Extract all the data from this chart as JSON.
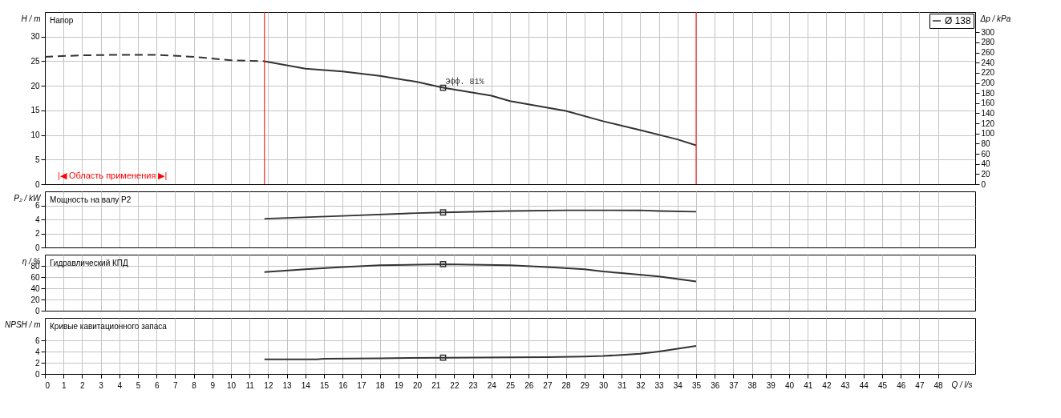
{
  "chart_data": [
    {
      "type": "line",
      "ylabel": "H / m",
      "y2label": "Δp / kPa",
      "xlim": [
        0,
        50
      ],
      "xticks": [
        0,
        1,
        2,
        3,
        4,
        5,
        6,
        7,
        8,
        9,
        10,
        11,
        12,
        13,
        14,
        15,
        16,
        17,
        18,
        19,
        20,
        21,
        22,
        23,
        24,
        25,
        26,
        27,
        28,
        29,
        30,
        31,
        32,
        33,
        34,
        35,
        36,
        37,
        38,
        39,
        40,
        41,
        42,
        43,
        44,
        45,
        46,
        47,
        48
      ],
      "ylim": [
        0,
        35
      ],
      "yticks": [
        0,
        5,
        10,
        15,
        20,
        25,
        30
      ],
      "y2lim": [
        0,
        340
      ],
      "y2ticks": [
        0,
        20,
        40,
        60,
        80,
        100,
        120,
        140,
        160,
        180,
        200,
        220,
        240,
        260,
        280,
        300
      ],
      "grid": true,
      "legend": "top right",
      "tick_labels": "y",
      "series": [
        {
          "color": "#333333",
          "line_style": "dashed",
          "x": [
            0,
            2,
            4,
            6,
            8,
            10,
            11.8
          ],
          "values": [
            25.9,
            26.2,
            26.3,
            26.3,
            25.9,
            25.2,
            25.0
          ]
        },
        {
          "name": "Ø 138",
          "color": "#333333",
          "line_style": "solid",
          "x": [
            11.8,
            14,
            16,
            18,
            20,
            21.4,
            24,
            25,
            28,
            30,
            32,
            34,
            35
          ],
          "values": [
            25.0,
            23.5,
            22.9,
            22.0,
            20.8,
            19.6,
            18.0,
            16.9,
            14.9,
            12.8,
            11.0,
            9.1,
            7.9
          ]
        },
        {
          "type": "scatter",
          "marker": "square",
          "color": "#333333",
          "x": [
            21.4
          ],
          "values": [
            19.6
          ]
        }
      ],
      "ref_lines": [
        {
          "axis": "x",
          "value": 11.8,
          "color": "#ff0000"
        },
        {
          "axis": "x",
          "value": 35,
          "color": "#ff0000"
        }
      ],
      "annotations": [
        "Напор",
        "|◀ Область применения ▶|",
        {
          "text": "Эфф. 81%",
          "x": 21.4,
          "y": 19.6
        }
      ]
    },
    {
      "type": "line",
      "ylabel": "P₂ / kW",
      "xlim": [
        0,
        50
      ],
      "xticks": [
        0,
        1,
        2,
        3,
        4,
        5,
        6,
        7,
        8,
        9,
        10,
        11,
        12,
        13,
        14,
        15,
        16,
        17,
        18,
        19,
        20,
        21,
        22,
        23,
        24,
        25,
        26,
        27,
        28,
        29,
        30,
        31,
        32,
        33,
        34,
        35,
        36,
        37,
        38,
        39,
        40,
        41,
        42,
        43,
        44,
        45,
        46,
        47,
        48
      ],
      "ylim": [
        0,
        8
      ],
      "yticks": [
        0,
        2,
        4,
        6
      ],
      "grid": true,
      "tick_labels": "y",
      "series": [
        {
          "color": "#333333",
          "x": [
            11.8,
            16,
            20,
            21.4,
            25,
            28,
            32,
            33,
            35
          ],
          "values": [
            4.1,
            4.5,
            4.9,
            5.0,
            5.2,
            5.3,
            5.3,
            5.2,
            5.1
          ]
        },
        {
          "type": "scatter",
          "marker": "square",
          "color": "#333333",
          "x": [
            21.4
          ],
          "values": [
            5.0
          ]
        }
      ],
      "annotations": [
        "Мощность на валу P2"
      ]
    },
    {
      "type": "line",
      "ylabel": "η / %",
      "xlim": [
        0,
        50
      ],
      "xticks": [
        0,
        1,
        2,
        3,
        4,
        5,
        6,
        7,
        8,
        9,
        10,
        11,
        12,
        13,
        14,
        15,
        16,
        17,
        18,
        19,
        20,
        21,
        22,
        23,
        24,
        25,
        26,
        27,
        28,
        29,
        30,
        31,
        32,
        33,
        34,
        35,
        36,
        37,
        38,
        39,
        40,
        41,
        42,
        43,
        44,
        45,
        46,
        47,
        48
      ],
      "ylim": [
        0,
        100
      ],
      "yticks": [
        0,
        20,
        40,
        60,
        80
      ],
      "grid": true,
      "tick_labels": "y",
      "series": [
        {
          "color": "#333333",
          "x": [
            11.8,
            14,
            16,
            18,
            20,
            21.4,
            25,
            27,
            29,
            30,
            31,
            33,
            35
          ],
          "values": [
            69,
            74,
            78,
            81,
            82,
            83,
            81,
            78,
            74,
            70,
            67,
            61,
            52
          ]
        },
        {
          "type": "scatter",
          "marker": "square",
          "color": "#333333",
          "x": [
            21.4
          ],
          "values": [
            83
          ]
        }
      ],
      "annotations": [
        "Гидравлический КПД"
      ]
    },
    {
      "type": "line",
      "ylabel": "NPSH / m",
      "xlabel": "Q / l/s",
      "xlim": [
        0,
        50
      ],
      "xticks": [
        0,
        1,
        2,
        3,
        4,
        5,
        6,
        7,
        8,
        9,
        10,
        11,
        12,
        13,
        14,
        15,
        16,
        17,
        18,
        19,
        20,
        21,
        22,
        23,
        24,
        25,
        26,
        27,
        28,
        29,
        30,
        31,
        32,
        33,
        34,
        35,
        36,
        37,
        38,
        39,
        40,
        41,
        42,
        43,
        44,
        45,
        46,
        47,
        48
      ],
      "ylim": [
        0,
        10
      ],
      "yticks": [
        0,
        2,
        4,
        6
      ],
      "grid": true,
      "series": [
        {
          "color": "#333333",
          "x": [
            11.8,
            14.6,
            15,
            18,
            21.4,
            27,
            29,
            30,
            31,
            32,
            33,
            34,
            35
          ],
          "values": [
            2.6,
            2.6,
            2.7,
            2.8,
            2.9,
            3.0,
            3.1,
            3.2,
            3.4,
            3.6,
            4.0,
            4.5,
            5.0
          ]
        },
        {
          "type": "scatter",
          "marker": "square",
          "color": "#333333",
          "x": [
            21.4
          ],
          "values": [
            2.9
          ]
        }
      ],
      "annotations": [
        "Кривые кавитационного запаса"
      ]
    }
  ]
}
